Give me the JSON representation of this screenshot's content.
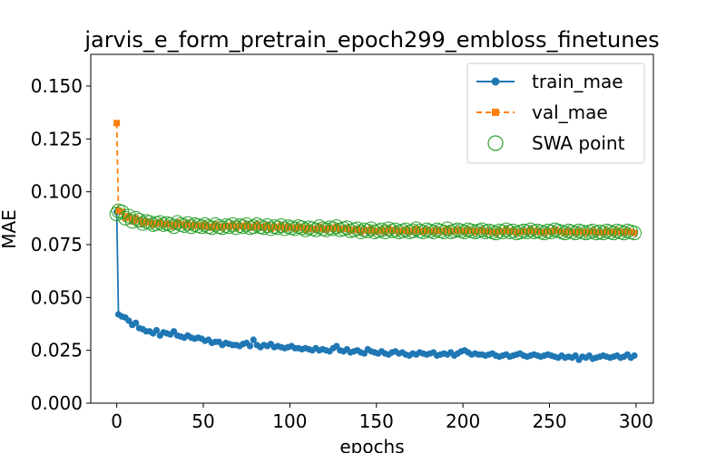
{
  "chart_data": {
    "type": "line",
    "title": "jarvis_e_form_pretrain_epoch299_embloss_finetunes",
    "xlabel": "epochs",
    "ylabel": "MAE",
    "xlim": [
      -15,
      310
    ],
    "ylim": [
      0,
      0.165
    ],
    "xticks": [
      0,
      50,
      100,
      150,
      200,
      250,
      300
    ],
    "yticks": [
      0.0,
      0.025,
      0.05,
      0.075,
      0.1,
      0.125,
      0.15
    ],
    "xtick_labels": [
      "0",
      "50",
      "100",
      "150",
      "200",
      "250",
      "300"
    ],
    "ytick_labels": [
      "0.000",
      "0.025",
      "0.050",
      "0.075",
      "0.100",
      "0.125",
      "0.150"
    ],
    "grid": false,
    "legend_position": "top-right",
    "series": [
      {
        "name": "train_mae",
        "color": "#1f77b4",
        "marker": "circle",
        "line": "solid",
        "x": [
          0,
          1,
          3,
          5,
          7,
          9,
          11,
          13,
          15,
          17,
          19,
          21,
          23,
          25,
          27,
          29,
          31,
          33,
          35,
          37,
          39,
          41,
          43,
          45,
          47,
          49,
          51,
          53,
          55,
          57,
          59,
          61,
          63,
          65,
          67,
          69,
          71,
          73,
          75,
          77,
          79,
          81,
          83,
          85,
          87,
          89,
          91,
          93,
          95,
          97,
          99,
          101,
          103,
          105,
          107,
          109,
          111,
          113,
          115,
          117,
          119,
          121,
          123,
          125,
          127,
          129,
          131,
          133,
          135,
          137,
          139,
          141,
          143,
          145,
          147,
          149,
          151,
          153,
          155,
          157,
          159,
          161,
          163,
          165,
          167,
          169,
          171,
          173,
          175,
          177,
          179,
          181,
          183,
          185,
          187,
          189,
          191,
          193,
          195,
          197,
          199,
          201,
          203,
          205,
          207,
          209,
          211,
          213,
          215,
          217,
          219,
          221,
          223,
          225,
          227,
          229,
          231,
          233,
          235,
          237,
          239,
          241,
          243,
          245,
          247,
          249,
          251,
          253,
          255,
          257,
          259,
          261,
          263,
          265,
          267,
          269,
          271,
          273,
          275,
          277,
          279,
          281,
          283,
          285,
          287,
          289,
          291,
          293,
          295,
          297,
          299
        ],
        "values": [
          0.0905,
          0.042,
          0.041,
          0.0405,
          0.039,
          0.037,
          0.038,
          0.0355,
          0.035,
          0.034,
          0.034,
          0.033,
          0.0345,
          0.032,
          0.0335,
          0.033,
          0.0325,
          0.034,
          0.032,
          0.0315,
          0.031,
          0.032,
          0.031,
          0.0305,
          0.031,
          0.0305,
          0.0295,
          0.03,
          0.0285,
          0.029,
          0.029,
          0.0275,
          0.0285,
          0.028,
          0.0275,
          0.0275,
          0.027,
          0.028,
          0.0285,
          0.027,
          0.03,
          0.0275,
          0.0265,
          0.0275,
          0.027,
          0.028,
          0.0265,
          0.027,
          0.0265,
          0.026,
          0.0265,
          0.027,
          0.026,
          0.026,
          0.0255,
          0.026,
          0.0255,
          0.025,
          0.026,
          0.025,
          0.0255,
          0.025,
          0.0245,
          0.026,
          0.027,
          0.025,
          0.0245,
          0.0255,
          0.024,
          0.0245,
          0.025,
          0.024,
          0.0235,
          0.0255,
          0.0245,
          0.024,
          0.0235,
          0.0245,
          0.0235,
          0.023,
          0.024,
          0.0245,
          0.0235,
          0.024,
          0.023,
          0.0225,
          0.0235,
          0.023,
          0.024,
          0.0235,
          0.023,
          0.0235,
          0.024,
          0.0225,
          0.023,
          0.0235,
          0.023,
          0.024,
          0.0225,
          0.0235,
          0.0245,
          0.025,
          0.024,
          0.023,
          0.0235,
          0.023,
          0.023,
          0.0225,
          0.023,
          0.0235,
          0.0225,
          0.022,
          0.0225,
          0.023,
          0.022,
          0.0225,
          0.023,
          0.0235,
          0.0225,
          0.022,
          0.0225,
          0.023,
          0.0225,
          0.022,
          0.0225,
          0.023,
          0.0225,
          0.022,
          0.0215,
          0.0225,
          0.0215,
          0.022,
          0.0215,
          0.0225,
          0.0205,
          0.022,
          0.0215,
          0.0225,
          0.021,
          0.0215,
          0.022,
          0.0225,
          0.022,
          0.0215,
          0.022,
          0.0225,
          0.0215,
          0.022,
          0.023,
          0.0215,
          0.0225
        ]
      },
      {
        "name": "val_mae",
        "color": "#ff7f0e",
        "marker": "square",
        "line": "dashed",
        "x": [
          0,
          1,
          3,
          5,
          7,
          9,
          11,
          13,
          15,
          17,
          19,
          21,
          23,
          25,
          27,
          29,
          31,
          33,
          35,
          37,
          39,
          41,
          43,
          45,
          47,
          49,
          51,
          53,
          55,
          57,
          59,
          61,
          63,
          65,
          67,
          69,
          71,
          73,
          75,
          77,
          79,
          81,
          83,
          85,
          87,
          89,
          91,
          93,
          95,
          97,
          99,
          101,
          103,
          105,
          107,
          109,
          111,
          113,
          115,
          117,
          119,
          121,
          123,
          125,
          127,
          129,
          131,
          133,
          135,
          137,
          139,
          141,
          143,
          145,
          147,
          149,
          151,
          153,
          155,
          157,
          159,
          161,
          163,
          165,
          167,
          169,
          171,
          173,
          175,
          177,
          179,
          181,
          183,
          185,
          187,
          189,
          191,
          193,
          195,
          197,
          199,
          201,
          203,
          205,
          207,
          209,
          211,
          213,
          215,
          217,
          219,
          221,
          223,
          225,
          227,
          229,
          231,
          233,
          235,
          237,
          239,
          241,
          243,
          245,
          247,
          249,
          251,
          253,
          255,
          257,
          259,
          261,
          263,
          265,
          267,
          269,
          271,
          273,
          275,
          277,
          279,
          281,
          283,
          285,
          287,
          289,
          291,
          293,
          295,
          297,
          299
        ],
        "values": [
          0.1325,
          0.091,
          0.0905,
          0.0875,
          0.0885,
          0.086,
          0.0875,
          0.0865,
          0.085,
          0.086,
          0.0855,
          0.0845,
          0.085,
          0.0855,
          0.0845,
          0.085,
          0.0845,
          0.0835,
          0.0855,
          0.0845,
          0.084,
          0.085,
          0.0835,
          0.0845,
          0.084,
          0.0835,
          0.0845,
          0.0835,
          0.083,
          0.0845,
          0.0835,
          0.083,
          0.084,
          0.0835,
          0.0845,
          0.083,
          0.084,
          0.0835,
          0.0845,
          0.083,
          0.0835,
          0.0845,
          0.0835,
          0.083,
          0.084,
          0.0825,
          0.0835,
          0.083,
          0.084,
          0.0825,
          0.0835,
          0.083,
          0.0825,
          0.0835,
          0.083,
          0.082,
          0.083,
          0.0825,
          0.082,
          0.0835,
          0.0825,
          0.082,
          0.083,
          0.0825,
          0.0835,
          0.082,
          0.0825,
          0.083,
          0.0815,
          0.082,
          0.0825,
          0.081,
          0.082,
          0.0815,
          0.0825,
          0.081,
          0.0815,
          0.082,
          0.081,
          0.0825,
          0.0815,
          0.082,
          0.081,
          0.0815,
          0.082,
          0.081,
          0.0815,
          0.0825,
          0.0815,
          0.081,
          0.082,
          0.0815,
          0.081,
          0.082,
          0.0815,
          0.081,
          0.0825,
          0.081,
          0.0815,
          0.082,
          0.0815,
          0.081,
          0.082,
          0.0815,
          0.081,
          0.0815,
          0.082,
          0.081,
          0.0815,
          0.081,
          0.0805,
          0.0815,
          0.081,
          0.082,
          0.081,
          0.0815,
          0.0805,
          0.081,
          0.0815,
          0.081,
          0.082,
          0.081,
          0.0815,
          0.081,
          0.0805,
          0.0815,
          0.081,
          0.082,
          0.0815,
          0.081,
          0.0805,
          0.0815,
          0.081,
          0.0805,
          0.0815,
          0.081,
          0.0805,
          0.081,
          0.0815,
          0.0805,
          0.081,
          0.0805,
          0.0815,
          0.081,
          0.0805,
          0.0815,
          0.081,
          0.0805,
          0.0815,
          0.081,
          0.0805
        ]
      },
      {
        "name": "SWA point",
        "color": "#2ca02c",
        "marker": "open-circle",
        "line": "none",
        "x": [
          0,
          1,
          3,
          5,
          7,
          9,
          11,
          13,
          15,
          17,
          19,
          21,
          23,
          25,
          27,
          29,
          31,
          33,
          35,
          37,
          39,
          41,
          43,
          45,
          47,
          49,
          51,
          53,
          55,
          57,
          59,
          61,
          63,
          65,
          67,
          69,
          71,
          73,
          75,
          77,
          79,
          81,
          83,
          85,
          87,
          89,
          91,
          93,
          95,
          97,
          99,
          101,
          103,
          105,
          107,
          109,
          111,
          113,
          115,
          117,
          119,
          121,
          123,
          125,
          127,
          129,
          131,
          133,
          135,
          137,
          139,
          141,
          143,
          145,
          147,
          149,
          151,
          153,
          155,
          157,
          159,
          161,
          163,
          165,
          167,
          169,
          171,
          173,
          175,
          177,
          179,
          181,
          183,
          185,
          187,
          189,
          191,
          193,
          195,
          197,
          199,
          201,
          203,
          205,
          207,
          209,
          211,
          213,
          215,
          217,
          219,
          221,
          223,
          225,
          227,
          229,
          231,
          233,
          235,
          237,
          239,
          241,
          243,
          245,
          247,
          249,
          251,
          253,
          255,
          257,
          259,
          261,
          263,
          265,
          267,
          269,
          271,
          273,
          275,
          277,
          279,
          281,
          283,
          285,
          287,
          289,
          291,
          293,
          295,
          297,
          299
        ],
        "values": [
          0.0895,
          0.091,
          0.0905,
          0.0875,
          0.0885,
          0.086,
          0.0875,
          0.0865,
          0.085,
          0.086,
          0.0855,
          0.0845,
          0.085,
          0.0855,
          0.0845,
          0.085,
          0.0845,
          0.0835,
          0.0855,
          0.0845,
          0.084,
          0.085,
          0.0835,
          0.0845,
          0.084,
          0.0835,
          0.0845,
          0.0835,
          0.083,
          0.0845,
          0.0835,
          0.083,
          0.084,
          0.0835,
          0.0845,
          0.083,
          0.084,
          0.0835,
          0.0845,
          0.083,
          0.0835,
          0.0845,
          0.0835,
          0.083,
          0.084,
          0.0825,
          0.0835,
          0.083,
          0.084,
          0.0825,
          0.0835,
          0.083,
          0.0825,
          0.0835,
          0.083,
          0.082,
          0.083,
          0.0825,
          0.082,
          0.0835,
          0.0825,
          0.082,
          0.083,
          0.0825,
          0.0835,
          0.082,
          0.0825,
          0.083,
          0.0815,
          0.082,
          0.0825,
          0.081,
          0.082,
          0.0815,
          0.0825,
          0.081,
          0.0815,
          0.082,
          0.081,
          0.0825,
          0.0815,
          0.082,
          0.081,
          0.0815,
          0.082,
          0.081,
          0.0815,
          0.0825,
          0.0815,
          0.081,
          0.082,
          0.0815,
          0.081,
          0.082,
          0.0815,
          0.081,
          0.0825,
          0.081,
          0.0815,
          0.082,
          0.0815,
          0.081,
          0.082,
          0.0815,
          0.081,
          0.0815,
          0.082,
          0.081,
          0.0815,
          0.081,
          0.0805,
          0.0815,
          0.081,
          0.082,
          0.081,
          0.0815,
          0.0805,
          0.081,
          0.0815,
          0.081,
          0.082,
          0.081,
          0.0815,
          0.081,
          0.0805,
          0.0815,
          0.081,
          0.082,
          0.0815,
          0.081,
          0.0805,
          0.0815,
          0.081,
          0.0805,
          0.0815,
          0.081,
          0.0805,
          0.081,
          0.0815,
          0.0805,
          0.081,
          0.0805,
          0.0815,
          0.081,
          0.0805,
          0.0815,
          0.081,
          0.0805,
          0.0815,
          0.081,
          0.0805
        ]
      }
    ]
  }
}
